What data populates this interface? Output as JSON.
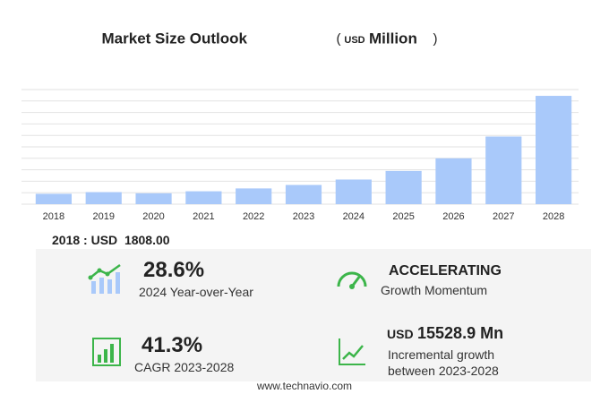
{
  "chart_data": {
    "type": "bar",
    "title": "Market Size Outlook",
    "title_unit": {
      "open": "(",
      "currency": "USD",
      "scale": "Million",
      "close": ")"
    },
    "categories": [
      "2018",
      "2019",
      "2020",
      "2021",
      "2022",
      "2023",
      "2024",
      "2025",
      "2026",
      "2027",
      "2028"
    ],
    "values": [
      1808,
      2100,
      1900,
      2250,
      2750,
      3350,
      4300,
      5800,
      8000,
      11800,
      18900
    ],
    "color": "#a9c9fa",
    "ylim": [
      0,
      20000
    ],
    "yticks": [
      0,
      2000,
      4000,
      6000,
      8000,
      10000,
      12000,
      14000,
      16000,
      18000,
      20000
    ],
    "grid": true
  },
  "highlight": {
    "label": "2018 : USD",
    "value": "1808.00"
  },
  "stats": {
    "yoy": {
      "value": "28.6%",
      "label": "2024 Year-over-Year"
    },
    "momentum": {
      "value": "ACCELERATING",
      "label": "Growth Momentum"
    },
    "cagr": {
      "value": "41.3%",
      "label": "CAGR 2023-2028"
    },
    "incremental": {
      "currency": "USD",
      "value": "15528.9 Mn",
      "label_1": "Incremental growth",
      "label_2": "between 2023-2028"
    }
  },
  "footer": "www.technavio.com"
}
